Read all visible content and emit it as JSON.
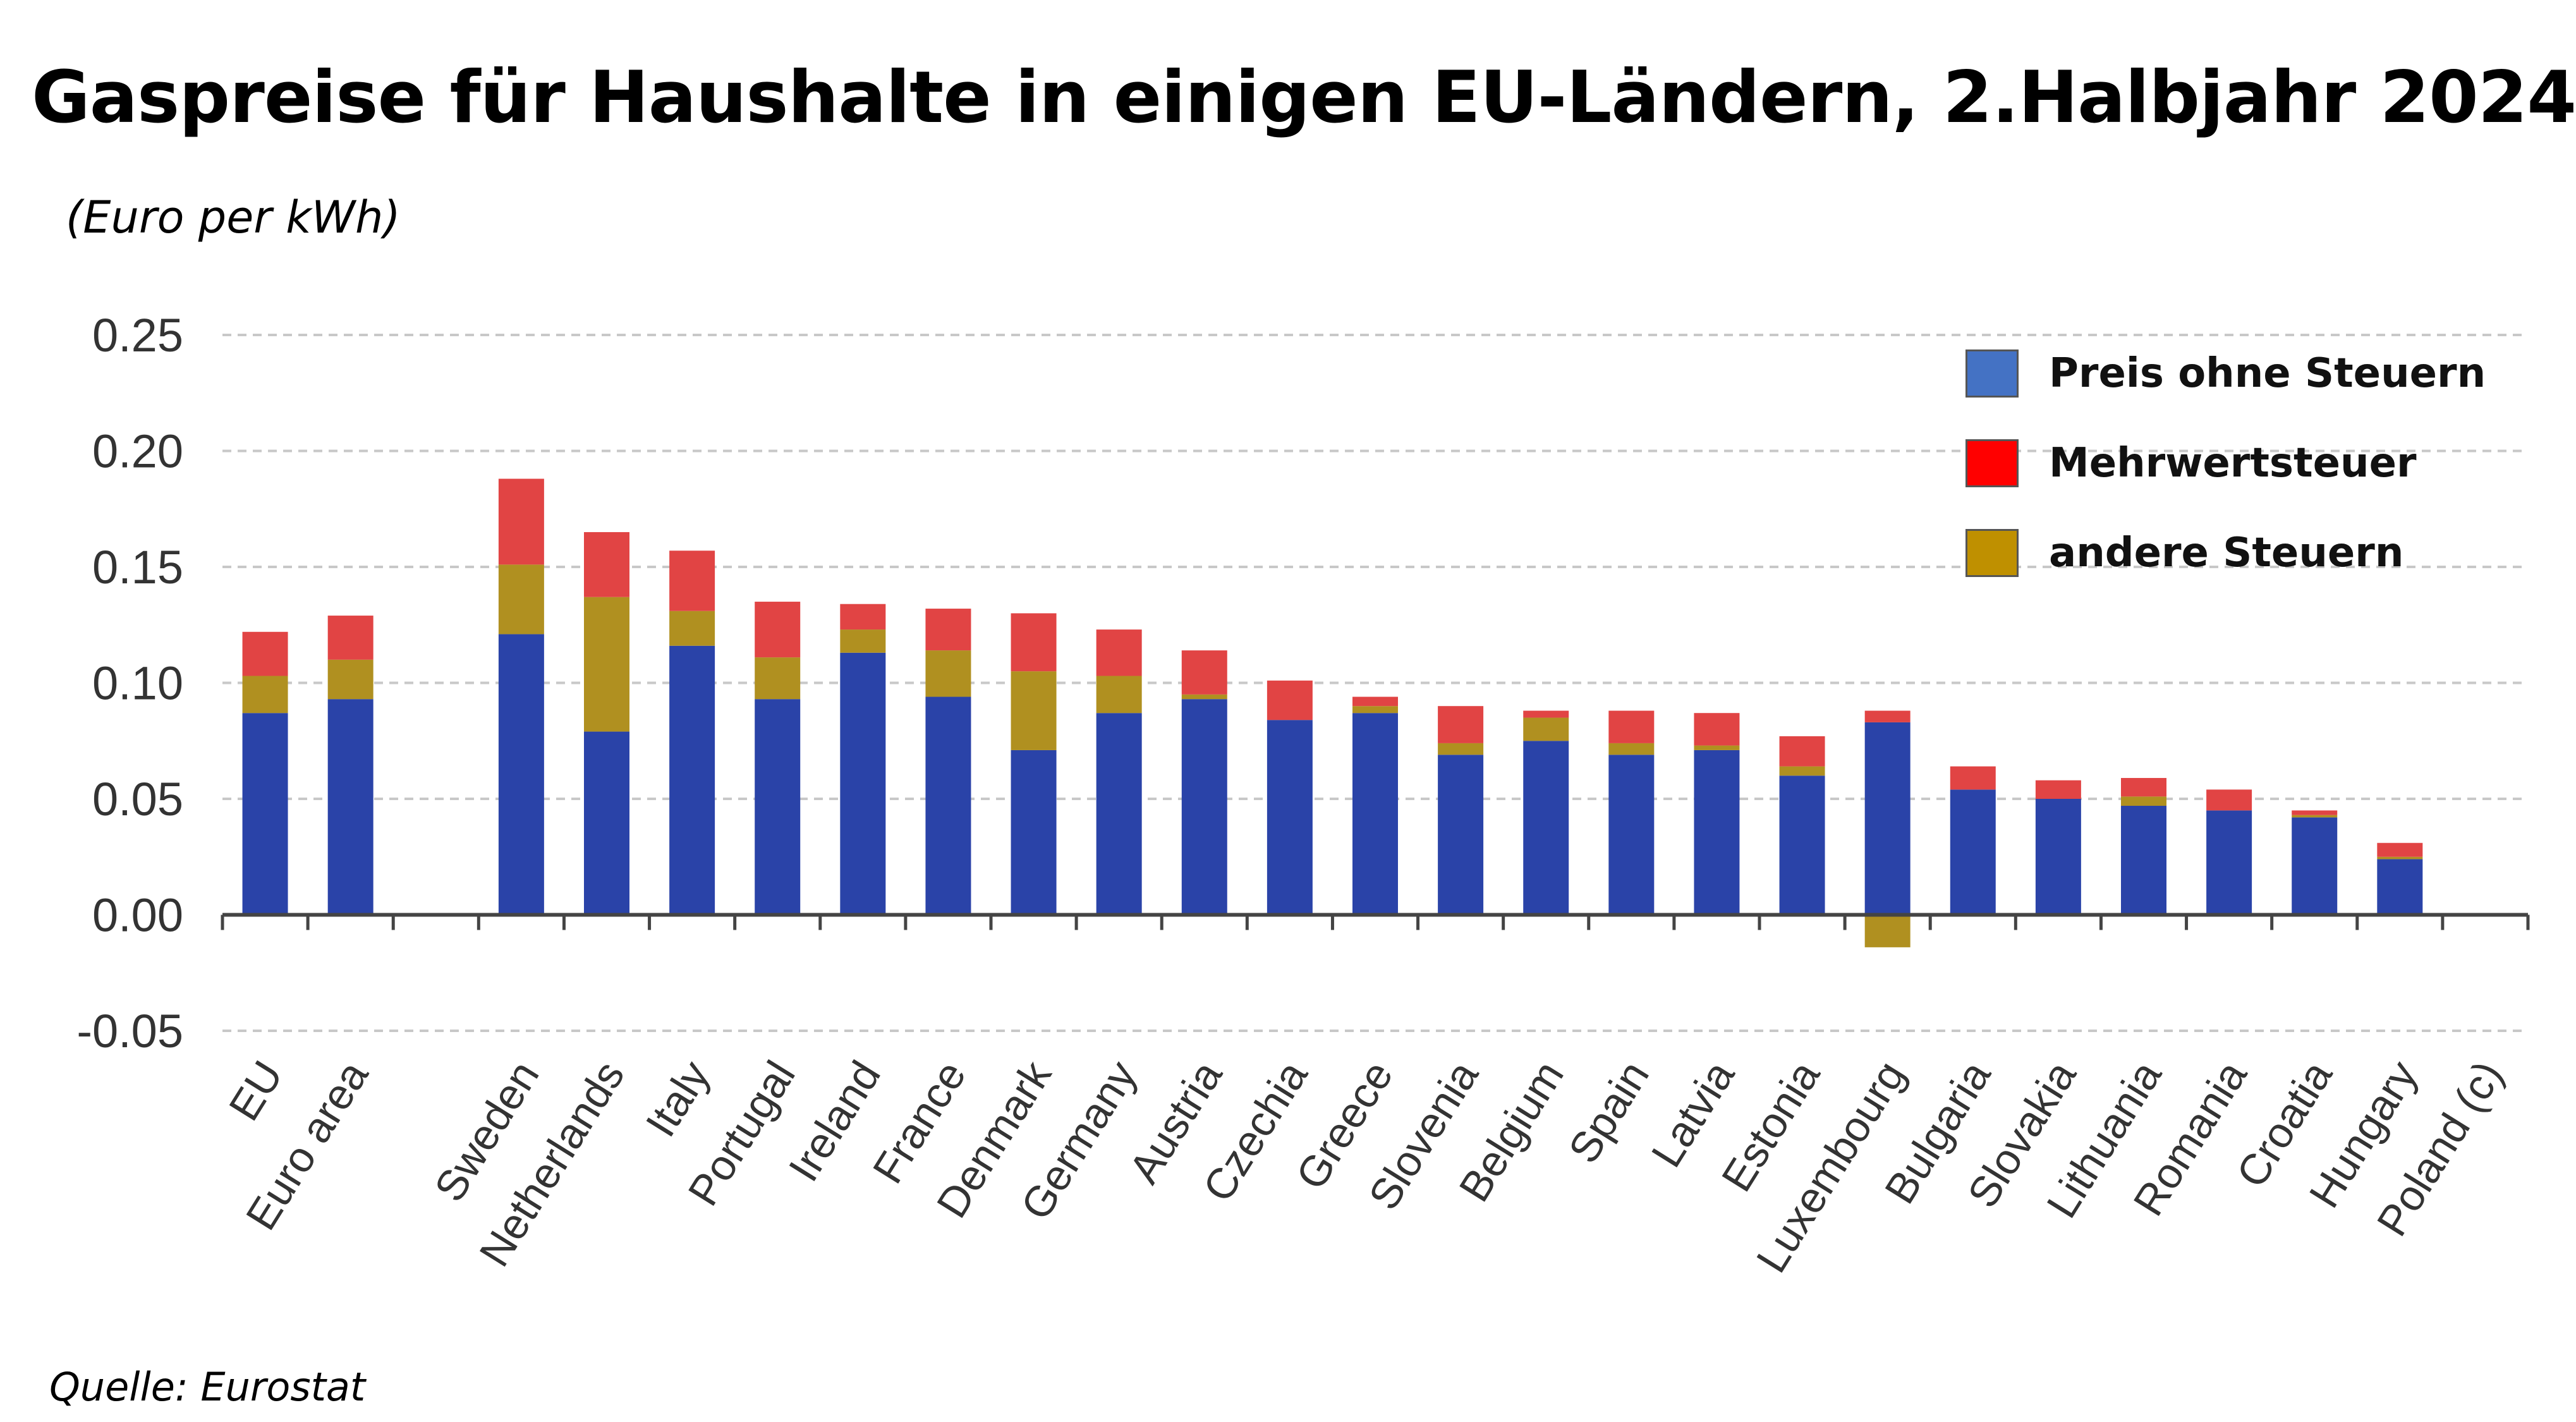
{
  "chart_data": {
    "type": "bar",
    "stacked": true,
    "title": "Gaspreise für Haushalte in einigen EU-Ländern, 2.Halbjahr 2024",
    "unit_label": "(Euro per kWh)",
    "source": "Quelle: Eurostat",
    "ylim": [
      -0.05,
      0.25
    ],
    "yticks": [
      0.25,
      0.2,
      0.15,
      0.1,
      0.05,
      0.0,
      -0.05
    ],
    "ytick_labels": [
      "0.25",
      "0.20",
      "0.15",
      "0.10",
      "0.05",
      "0.00",
      "-0.05"
    ],
    "grid": true,
    "legend_position": "top-right",
    "categories": [
      "EU",
      "Euro area",
      "",
      "Sweden",
      "Netherlands",
      "Italy",
      "Portugal",
      "Ireland",
      "France",
      "Denmark",
      "Germany",
      "Austria",
      "Czechia",
      "Greece",
      "Slovenia",
      "Belgium",
      "Spain",
      "Latvia",
      "Estonia",
      "Luxembourg",
      "Bulgaria",
      "Slovakia",
      "Lithuania",
      "Romania",
      "Croatia",
      "Hungary",
      "Poland (c)"
    ],
    "series": [
      {
        "name": "Preis ohne Steuern",
        "color": "#2a43a8",
        "values": [
          0.087,
          0.093,
          null,
          0.121,
          0.079,
          0.116,
          0.093,
          0.113,
          0.094,
          0.071,
          0.087,
          0.093,
          0.084,
          0.087,
          0.069,
          0.075,
          0.069,
          0.071,
          0.06,
          0.083,
          0.054,
          0.05,
          0.047,
          0.045,
          0.042,
          0.024,
          null
        ]
      },
      {
        "name": "andere Steuern",
        "color": "#b09020",
        "values": [
          0.016,
          0.017,
          null,
          0.03,
          0.058,
          0.015,
          0.018,
          0.01,
          0.02,
          0.034,
          0.016,
          0.002,
          0.0,
          0.003,
          0.005,
          0.01,
          0.005,
          0.002,
          0.004,
          -0.014,
          0.0,
          0.0,
          0.004,
          0.0,
          0.001,
          0.001,
          null
        ]
      },
      {
        "name": "Mehrwertsteuer",
        "color": "#e14444",
        "values": [
          0.019,
          0.019,
          null,
          0.037,
          0.028,
          0.026,
          0.024,
          0.011,
          0.018,
          0.025,
          0.02,
          0.019,
          0.017,
          0.004,
          0.016,
          0.003,
          0.014,
          0.014,
          0.013,
          0.005,
          0.01,
          0.008,
          0.008,
          0.009,
          0.002,
          0.006,
          null
        ]
      }
    ],
    "legend": [
      {
        "label": "Preis ohne Steuern",
        "color": "#4472c4"
      },
      {
        "label": "Mehrwertsteuer",
        "color": "#ff0000"
      },
      {
        "label": "andere Steuern",
        "color": "#bf9000"
      }
    ]
  }
}
